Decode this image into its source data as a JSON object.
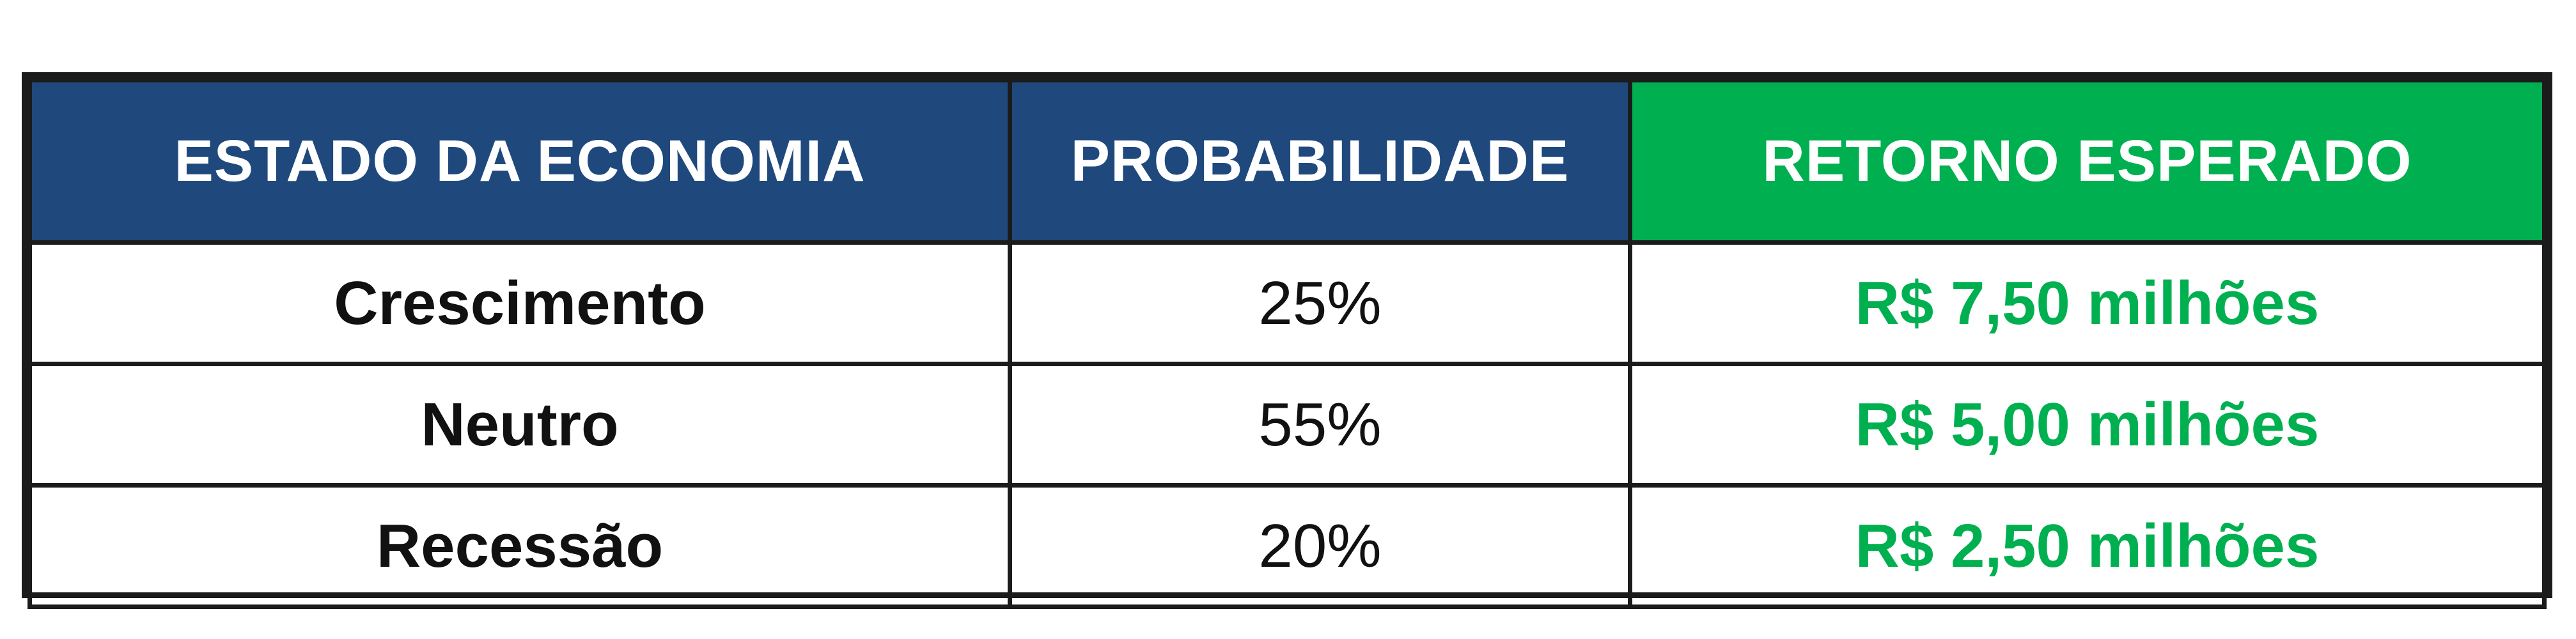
{
  "colors": {
    "header_blue": "#1f497d",
    "header_green": "#00b050",
    "return_text": "#00b050",
    "border": "#1b1b1b"
  },
  "table": {
    "headers": [
      "ESTADO DA ECONOMIA",
      "PROBABILIDADE",
      "RETORNO ESPERADO"
    ],
    "rows": [
      {
        "state": "Crescimento",
        "probability": "25%",
        "expected_return": "R$ 7,50 milhões"
      },
      {
        "state": "Neutro",
        "probability": "55%",
        "expected_return": "R$ 5,00 milhões"
      },
      {
        "state": "Recessão",
        "probability": "20%",
        "expected_return": "R$ 2,50 milhões"
      }
    ]
  }
}
